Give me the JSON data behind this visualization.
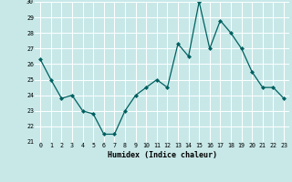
{
  "x": [
    0,
    1,
    2,
    3,
    4,
    5,
    6,
    7,
    8,
    9,
    10,
    11,
    12,
    13,
    14,
    15,
    16,
    17,
    18,
    19,
    20,
    21,
    22,
    23
  ],
  "y": [
    26.3,
    25.0,
    23.8,
    24.0,
    23.0,
    22.8,
    21.5,
    21.5,
    23.0,
    24.0,
    24.5,
    25.0,
    24.5,
    27.3,
    26.5,
    30.0,
    27.0,
    28.8,
    28.0,
    27.0,
    25.5,
    24.5,
    24.5,
    23.8
  ],
  "xlabel": "Humidex (Indice chaleur)",
  "ylim": [
    21,
    30
  ],
  "xlim_min": -0.5,
  "xlim_max": 23.5,
  "yticks": [
    21,
    22,
    23,
    24,
    25,
    26,
    27,
    28,
    29,
    30
  ],
  "xticks": [
    0,
    1,
    2,
    3,
    4,
    5,
    6,
    7,
    8,
    9,
    10,
    11,
    12,
    13,
    14,
    15,
    16,
    17,
    18,
    19,
    20,
    21,
    22,
    23
  ],
  "line_color": "#006060",
  "marker_color": "#006060",
  "bg_color": "#c8e8e8",
  "grid_color": "#ffffff",
  "grid_minor_color": "#e0f0f0"
}
